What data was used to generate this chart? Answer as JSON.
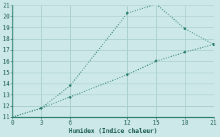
{
  "xlabel": "Humidex (Indice chaleur)",
  "x": [
    0,
    3,
    6,
    12,
    15,
    18,
    21
  ],
  "y_upper": [
    11,
    11.8,
    13.8,
    20.3,
    21.1,
    18.9,
    17.5
  ],
  "y_lower": [
    11,
    11.8,
    12.8,
    14.8,
    16.0,
    16.8,
    17.5
  ],
  "line_color": "#2a7d6e",
  "bg_color": "#cce8e8",
  "grid_color": "#aacfcf",
  "xlim": [
    0,
    21
  ],
  "ylim": [
    11,
    21
  ],
  "xticks": [
    0,
    3,
    6,
    12,
    15,
    18,
    21
  ],
  "yticks": [
    11,
    12,
    13,
    14,
    15,
    16,
    17,
    18,
    19,
    20,
    21
  ],
  "markersize": 3.5,
  "linewidth": 1.0,
  "linestyle": ":"
}
